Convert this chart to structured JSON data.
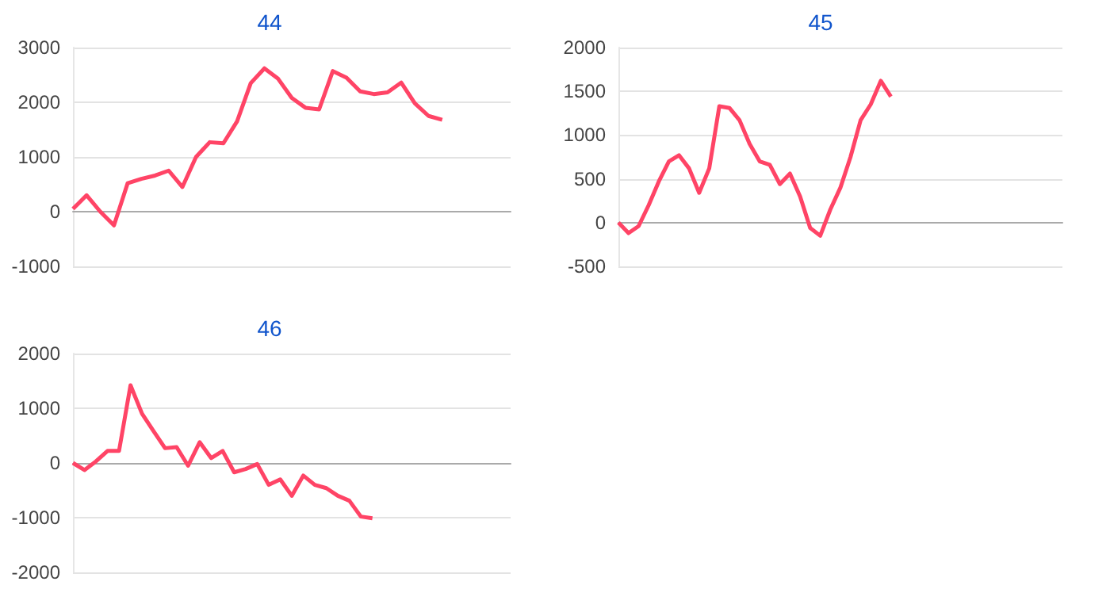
{
  "chart_data": [
    {
      "type": "line",
      "title": "44",
      "categories": [
        null,
        null,
        null,
        null,
        null,
        null,
        null,
        null,
        null,
        null,
        null,
        null,
        null,
        null,
        null,
        null,
        null,
        null,
        null,
        null,
        null,
        null,
        null,
        null,
        null,
        null,
        null,
        null,
        null,
        null,
        null,
        null,
        null
      ],
      "series": [
        {
          "color": "#ff4466",
          "values": [
            50,
            300,
            0,
            -250,
            520,
            600,
            660,
            750,
            450,
            1000,
            1270,
            1250,
            1650,
            2350,
            2620,
            2430,
            2080,
            1900,
            1870,
            2570,
            2450,
            2200,
            2150,
            2180,
            2360,
            1980,
            1750,
            1680,
            null,
            null,
            null,
            null,
            null
          ]
        }
      ],
      "ylim": [
        -1000,
        3000
      ],
      "yticks": [
        -1000,
        0,
        1000,
        2000,
        3000
      ],
      "grid": "y",
      "tick_labels": "y"
    },
    {
      "type": "line",
      "title": "45",
      "categories": [
        null,
        null,
        null,
        null,
        null,
        null,
        null,
        null,
        null,
        null,
        null,
        null,
        null,
        null,
        null,
        null,
        null,
        null,
        null,
        null,
        null,
        null,
        null,
        null,
        null,
        null,
        null,
        null,
        null,
        null,
        null,
        null,
        null,
        null,
        null,
        null,
        null,
        null,
        null,
        null,
        null,
        null,
        null,
        null,
        null
      ],
      "series": [
        {
          "color": "#ff4466",
          "values": [
            0,
            -120,
            -40,
            200,
            470,
            700,
            770,
            620,
            340,
            620,
            1330,
            1310,
            1170,
            900,
            700,
            660,
            440,
            560,
            300,
            -60,
            -150,
            150,
            400,
            750,
            1170,
            1350,
            1620,
            1440,
            null,
            null,
            null,
            null,
            null,
            null,
            null,
            null,
            null,
            null,
            null,
            null,
            null,
            null,
            null,
            null,
            null
          ]
        }
      ],
      "ylim": [
        -500,
        2000
      ],
      "yticks": [
        -500,
        0,
        500,
        1000,
        1500,
        2000
      ],
      "grid": "y",
      "tick_labels": "y"
    },
    {
      "type": "line",
      "title": "46",
      "categories": [
        null,
        null,
        null,
        null,
        null,
        null,
        null,
        null,
        null,
        null,
        null,
        null,
        null,
        null,
        null,
        null,
        null,
        null,
        null,
        null,
        null,
        null,
        null,
        null,
        null,
        null,
        null,
        null,
        null,
        null,
        null,
        null,
        null,
        null,
        null,
        null,
        null,
        null,
        null
      ],
      "series": [
        {
          "color": "#ff4466",
          "values": [
            0,
            -130,
            30,
            220,
            220,
            1420,
            900,
            580,
            270,
            290,
            -50,
            380,
            90,
            220,
            -170,
            -110,
            -20,
            -400,
            -300,
            -600,
            -230,
            -400,
            -460,
            -600,
            -690,
            -980,
            -1010,
            null,
            null,
            null,
            null,
            null,
            null,
            null,
            null,
            null,
            null,
            null,
            null
          ]
        }
      ],
      "ylim": [
        -2000,
        2000
      ],
      "yticks": [
        -2000,
        -1000,
        0,
        1000,
        2000
      ],
      "grid": "y",
      "tick_labels": "y"
    }
  ]
}
